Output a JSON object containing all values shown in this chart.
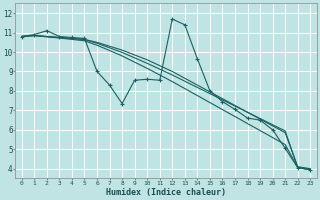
{
  "xlabel": "Humidex (Indice chaleur)",
  "bg_color": "#c0e4e4",
  "grid_color": "#ffffff",
  "line_color": "#1a6060",
  "xlim": [
    -0.5,
    23.5
  ],
  "ylim": [
    3.5,
    12.5
  ],
  "xticks": [
    0,
    1,
    2,
    3,
    4,
    5,
    6,
    7,
    8,
    9,
    10,
    11,
    12,
    13,
    14,
    15,
    16,
    17,
    18,
    19,
    20,
    21,
    22,
    23
  ],
  "yticks": [
    4,
    5,
    6,
    7,
    8,
    9,
    10,
    11,
    12
  ],
  "series": [
    {
      "x": [
        0,
        1,
        2,
        3,
        4,
        5,
        6,
        7,
        8,
        9,
        10,
        11,
        12,
        13,
        14,
        15,
        16,
        17,
        18,
        19,
        20,
        21,
        22,
        23
      ],
      "y": [
        10.8,
        10.9,
        11.1,
        10.8,
        10.75,
        10.7,
        9.0,
        8.3,
        7.35,
        8.55,
        8.6,
        8.55,
        11.7,
        11.4,
        9.65,
        8.0,
        7.45,
        7.05,
        6.6,
        6.5,
        6.0,
        5.05,
        4.05,
        3.95
      ],
      "marker": true
    },
    {
      "x": [
        0,
        1,
        2,
        3,
        4,
        5,
        6,
        7,
        8,
        9,
        10,
        11,
        12,
        13,
        14,
        15,
        16,
        17,
        18,
        19,
        20,
        21,
        22,
        23
      ],
      "y": [
        10.8,
        10.85,
        10.8,
        10.75,
        10.7,
        10.65,
        10.5,
        10.3,
        10.1,
        9.85,
        9.6,
        9.3,
        9.0,
        8.65,
        8.3,
        7.95,
        7.6,
        7.25,
        6.9,
        6.55,
        6.2,
        5.85,
        4.1,
        4.0
      ],
      "marker": false
    },
    {
      "x": [
        0,
        1,
        2,
        3,
        4,
        5,
        6,
        7,
        8,
        9,
        10,
        11,
        12,
        13,
        14,
        15,
        16,
        17,
        18,
        19,
        20,
        21,
        22,
        23
      ],
      "y": [
        10.8,
        10.85,
        10.8,
        10.75,
        10.7,
        10.65,
        10.45,
        10.22,
        9.98,
        9.7,
        9.42,
        9.12,
        8.82,
        8.5,
        8.18,
        7.86,
        7.54,
        7.22,
        6.9,
        6.58,
        6.26,
        5.94,
        4.05,
        3.95
      ],
      "marker": false
    },
    {
      "x": [
        0,
        1,
        2,
        3,
        4,
        5,
        6,
        7,
        8,
        9,
        10,
        11,
        12,
        13,
        14,
        15,
        16,
        17,
        18,
        19,
        20,
        21,
        22,
        23
      ],
      "y": [
        10.8,
        10.85,
        10.78,
        10.72,
        10.65,
        10.58,
        10.35,
        10.08,
        9.8,
        9.48,
        9.16,
        8.82,
        8.48,
        8.12,
        7.76,
        7.4,
        7.04,
        6.68,
        6.32,
        5.96,
        5.6,
        5.24,
        4.05,
        3.95
      ],
      "marker": false
    }
  ]
}
